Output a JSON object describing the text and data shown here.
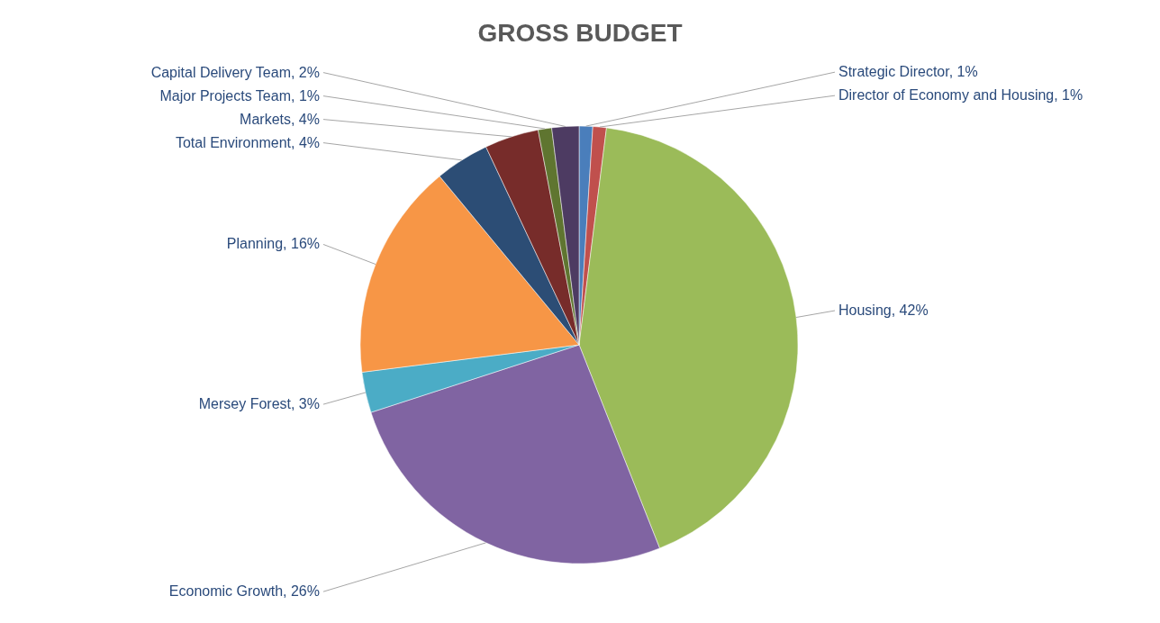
{
  "chart_data": {
    "type": "pie",
    "title": "GROSS BUDGET",
    "categories": [
      "Strategic Director",
      "Director of Economy and Housing",
      "Housing",
      "Economic Growth",
      "Mersey Forest",
      "Planning",
      "Total Environment",
      "Markets",
      "Major Projects Team",
      "Capital Delivery Team"
    ],
    "values": [
      1,
      1,
      42,
      26,
      3,
      16,
      4,
      4,
      1,
      2
    ],
    "value_labels": [
      "1%",
      "1%",
      "42%",
      "26%",
      "3%",
      "16%",
      "4%",
      "4%",
      "1%",
      "2%"
    ],
    "colors": [
      "#4a7ebb",
      "#c0504d",
      "#9bbb59",
      "#8064a2",
      "#4bacc6",
      "#f79646",
      "#2c4d75",
      "#772c2a",
      "#5f7530",
      "#4d3b62"
    ],
    "legend": false
  }
}
